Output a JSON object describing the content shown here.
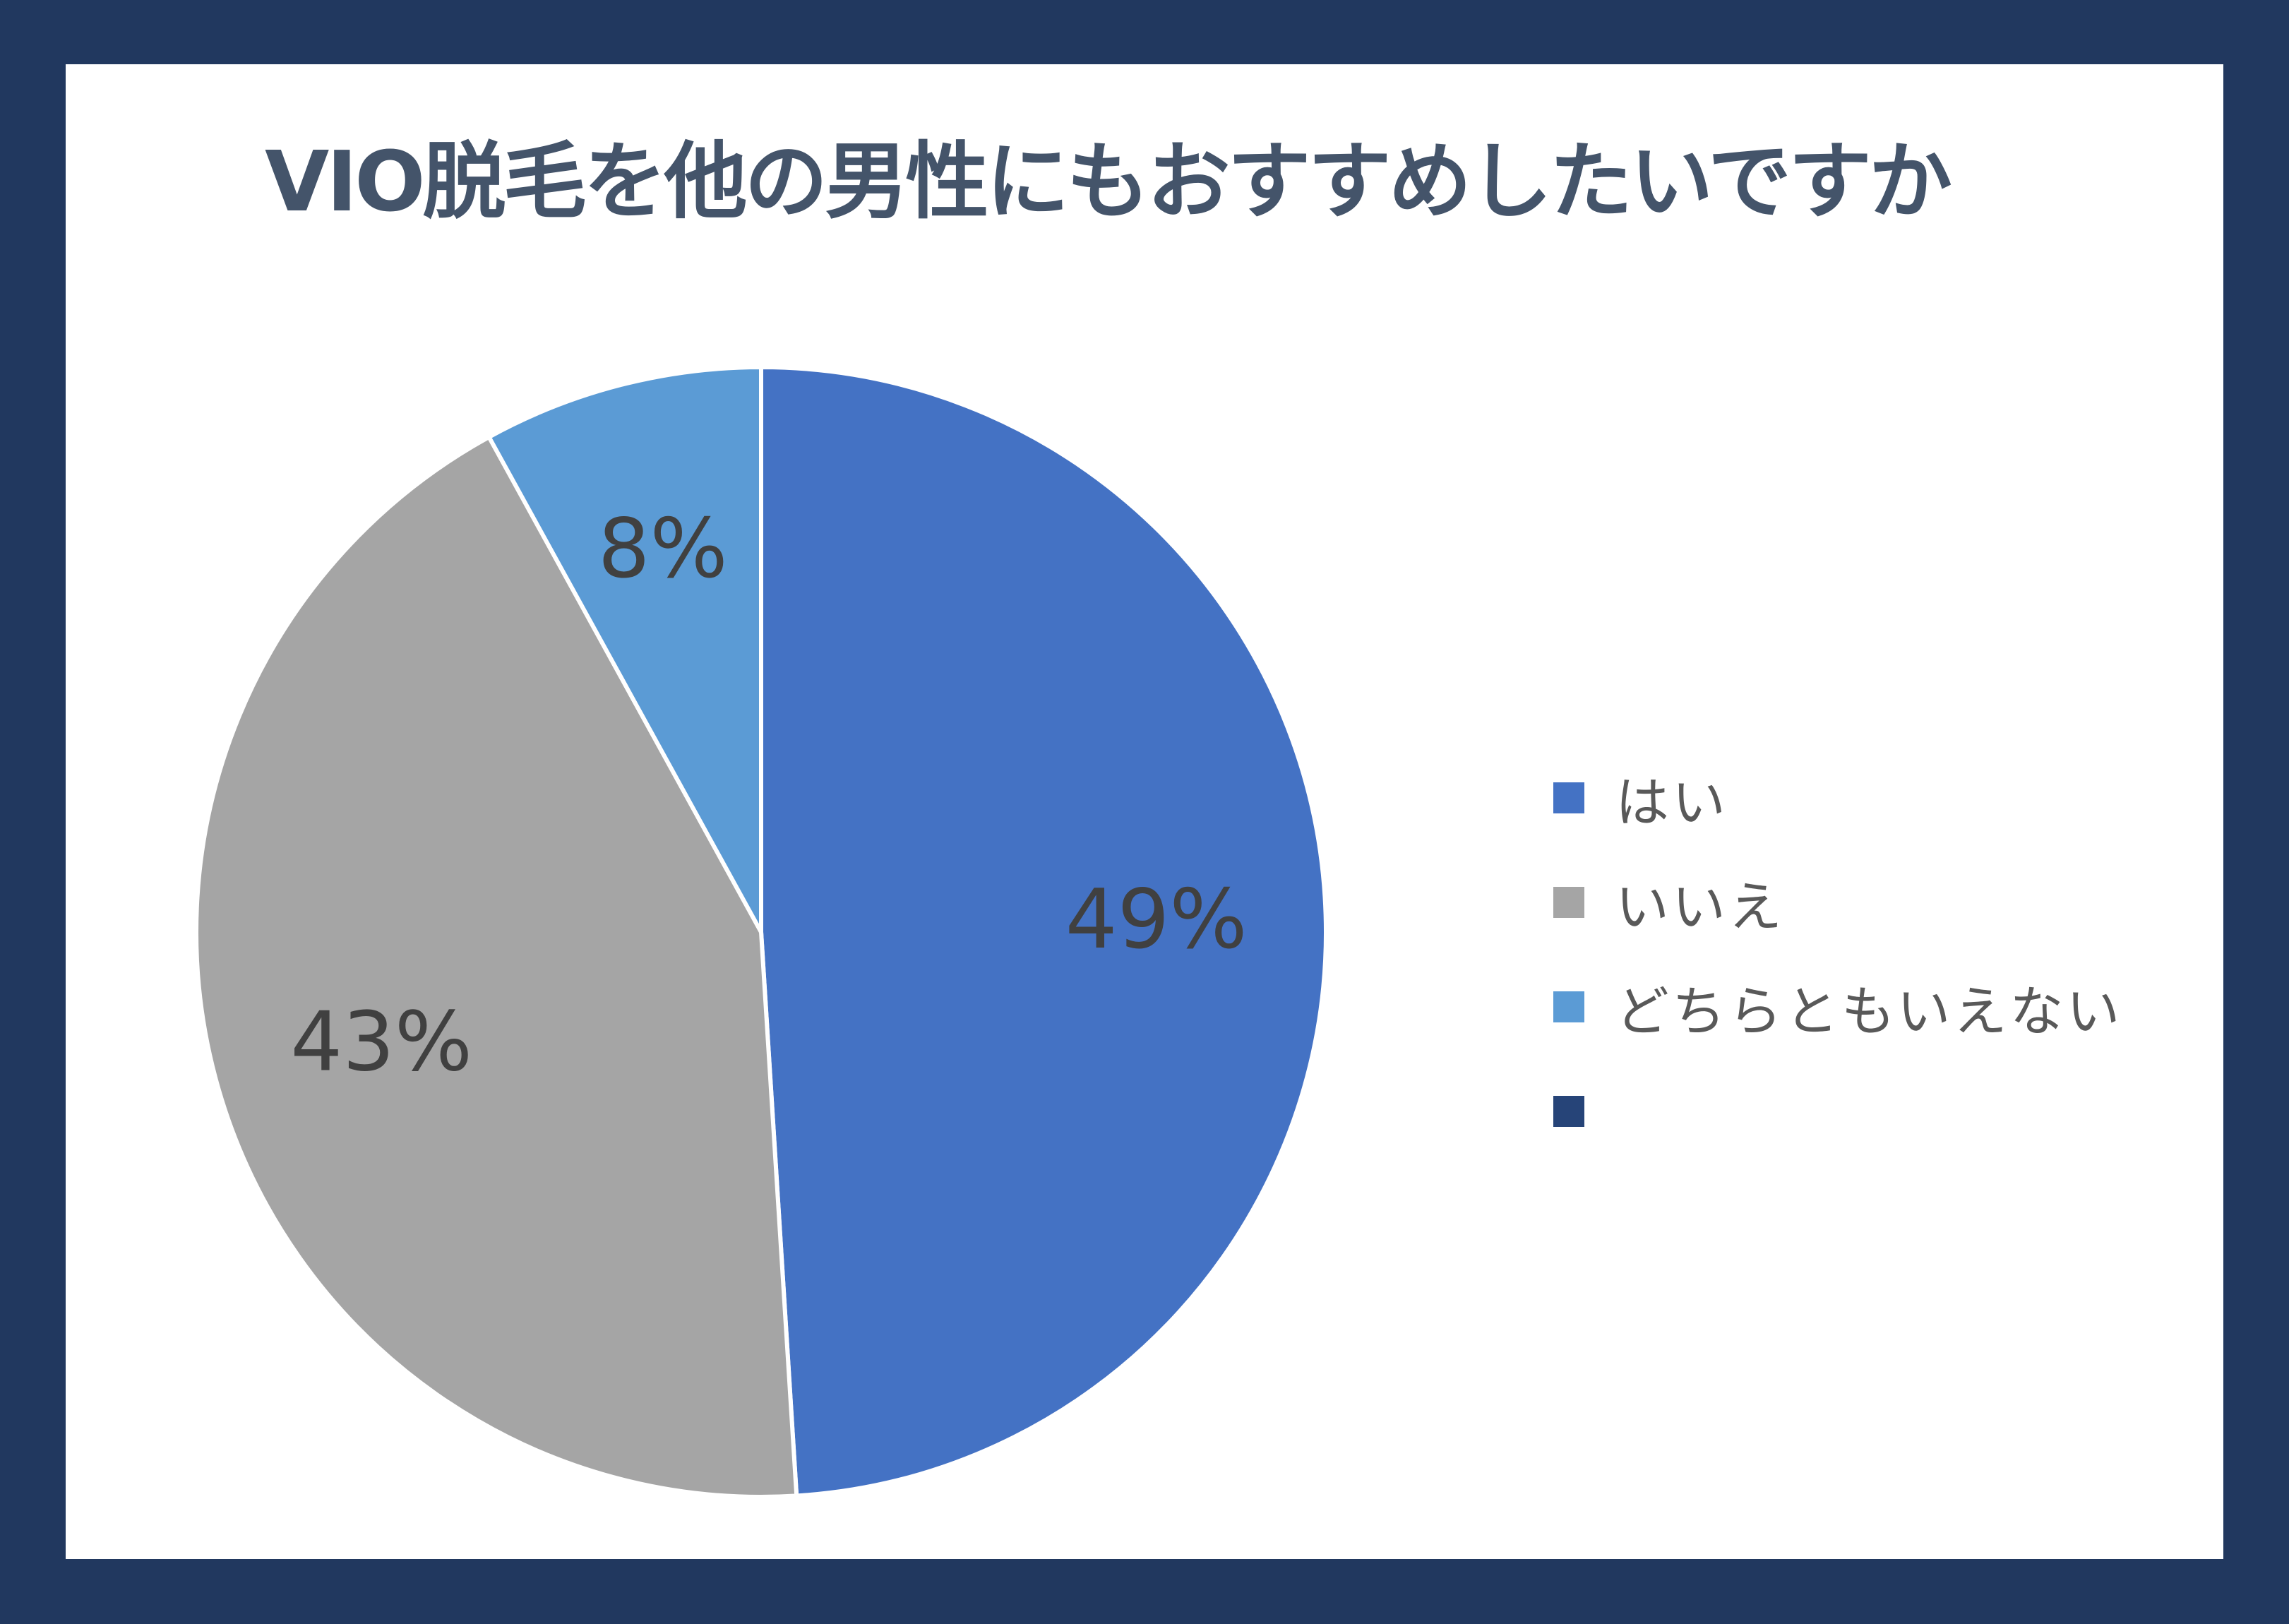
{
  "chart_data": {
    "type": "pie",
    "title": "VIO脱毛を他の男性にもおすすめしたいですか",
    "categories": [
      "はい",
      "いいえ",
      "どちらともいえない",
      ""
    ],
    "values": [
      49,
      43,
      8,
      0
    ],
    "data_labels": [
      "49%",
      "43%",
      "8%",
      ""
    ],
    "colors": [
      "#4472c4",
      "#a5a5a5",
      "#5b9bd5",
      "#264478"
    ],
    "legend_position": "right",
    "start_angle": "12 o'clock",
    "direction": "clockwise"
  },
  "background_color": "#21385f"
}
